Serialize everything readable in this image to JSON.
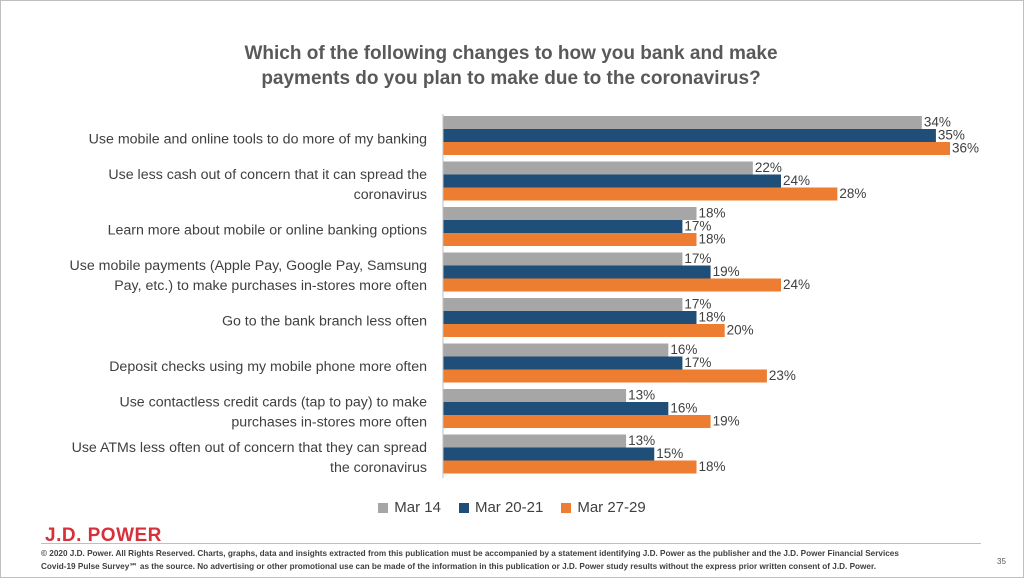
{
  "chart_data": {
    "type": "bar",
    "orientation": "horizontal",
    "title": "Which of the following changes to how you bank and make\npayments do you plan to make due to the coronavirus?",
    "categories": [
      "Use mobile and online tools to do more of my banking",
      "Use less cash out of concern that it can spread the coronavirus",
      "Learn more about mobile or online banking options",
      "Use mobile payments (Apple Pay, Google Pay, Samsung Pay, etc.) to make purchases in-stores more often",
      "Go to the bank branch less often",
      "Deposit checks using my mobile phone more often",
      "Use contactless credit cards (tap to pay) to make purchases in-stores more often",
      "Use ATMs less often out of concern that they can spread the coronavirus"
    ],
    "category_lines": [
      [
        "Use mobile and online tools to do more of my banking"
      ],
      [
        "Use less cash out of concern that it can spread the",
        "coronavirus"
      ],
      [
        "Learn more about mobile or online banking options"
      ],
      [
        "Use mobile payments (Apple Pay, Google Pay, Samsung",
        "Pay, etc.) to make purchases in-stores more often"
      ],
      [
        "Go to the bank branch less often"
      ],
      [
        "Deposit checks using my mobile phone more often"
      ],
      [
        "Use contactless credit cards (tap to pay) to make",
        "purchases in-stores more often"
      ],
      [
        "Use ATMs less often out of concern that they can spread",
        "the coronavirus"
      ]
    ],
    "series": [
      {
        "name": "Mar 14",
        "color": "#a6a6a6",
        "values": [
          34,
          22,
          18,
          17,
          17,
          16,
          13,
          13
        ]
      },
      {
        "name": "Mar 20-21",
        "color": "#1f4e79",
        "values": [
          35,
          24,
          17,
          19,
          18,
          17,
          16,
          15
        ]
      },
      {
        "name": "Mar 27-29",
        "color": "#ed7d31",
        "values": [
          36,
          28,
          18,
          24,
          20,
          23,
          19,
          18
        ]
      }
    ],
    "value_suffix": "%",
    "xlim": [
      0,
      36
    ],
    "legend_position": "bottom",
    "grid": false
  },
  "branding": {
    "logo": "J.D. POWER",
    "footer": "© 2020 J.D. Power. All Rights Reserved. Charts, graphs, data and insights extracted from this publication must be accompanied by a statement identifying J.D. Power as the publisher and the J.D. Power Financial Services\nCovid-19 Pulse Survey℠ as the source. No advertising or other promotional use can be made of the information in this publication or J.D. Power study results without the express prior written consent of J.D. Power.",
    "page_number": "35"
  },
  "colors": {
    "title": "#595959",
    "labels": "#404040",
    "brand_red": "#d6303a"
  }
}
